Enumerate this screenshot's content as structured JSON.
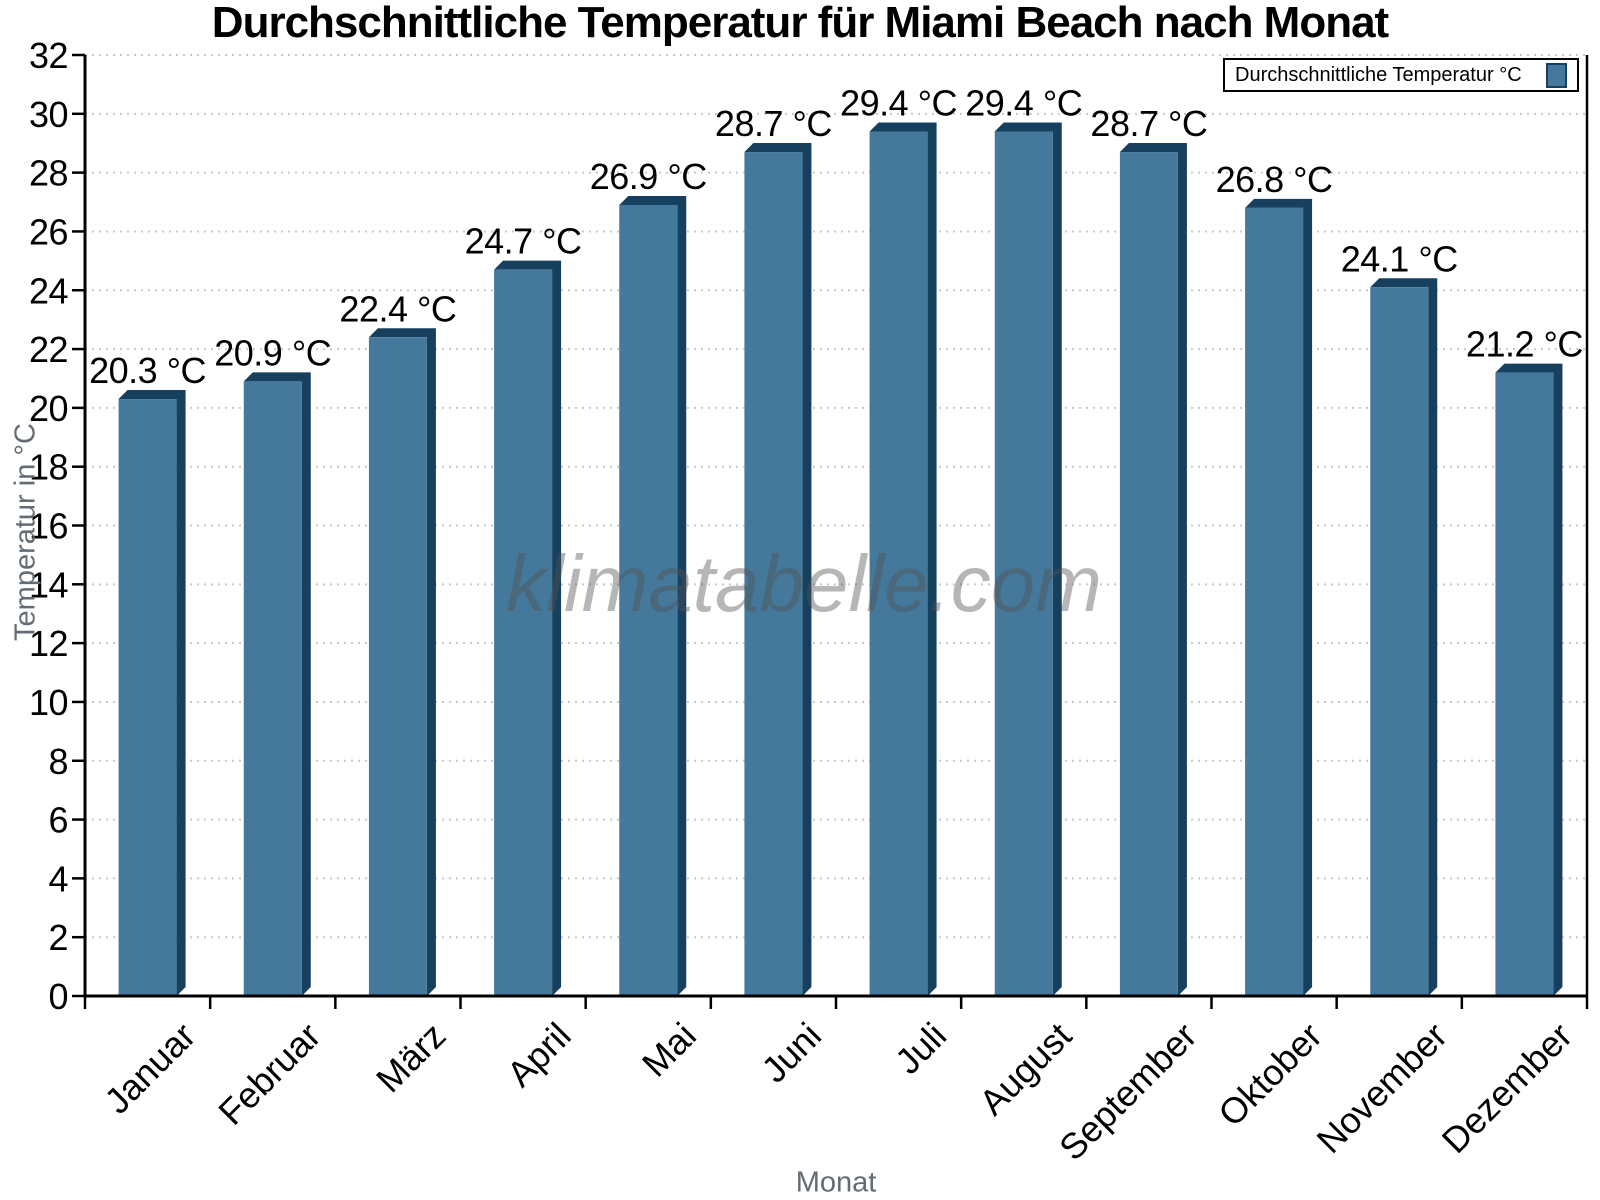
{
  "watermark": "klimatabelle.com",
  "colors": {
    "bar_fill": "#45799c",
    "bar_edge": "#17405e",
    "gridline": "#c9c9c9",
    "axis": "#000000",
    "axis_title_text": "#636b74",
    "label_text": "#000000"
  },
  "chart_data": {
    "type": "bar",
    "title": "Durchschnittliche Temperatur für Miami Beach nach Monat",
    "xlabel": "Monat",
    "ylabel": "Temperatur in °C",
    "categories": [
      "Januar",
      "Februar",
      "März",
      "April",
      "Mai",
      "Juni",
      "Juli",
      "August",
      "September",
      "Oktober",
      "November",
      "Dezember"
    ],
    "series": [
      {
        "name": "Durchschnittliche Temperatur °C",
        "values": [
          20.3,
          20.9,
          22.4,
          24.7,
          26.9,
          28.7,
          29.4,
          29.4,
          28.7,
          26.8,
          24.1,
          21.2
        ]
      }
    ],
    "data_labels": [
      "20.3 °C",
      "20.9 °C",
      "22.4 °C",
      "24.7 °C",
      "26.9 °C",
      "28.7 °C",
      "29.4 °C",
      "29.4 °C",
      "28.7 °C",
      "26.8 °C",
      "24.1 °C",
      "21.2 °C"
    ],
    "yticks": [
      0,
      2,
      4,
      6,
      8,
      10,
      12,
      14,
      16,
      18,
      20,
      22,
      24,
      26,
      28,
      30,
      32
    ],
    "ylim": [
      0,
      32
    ],
    "ytick_step": 2,
    "grid": "horizontal-dotted",
    "legend_position": "top-right",
    "bar_orientation": "vertical"
  }
}
